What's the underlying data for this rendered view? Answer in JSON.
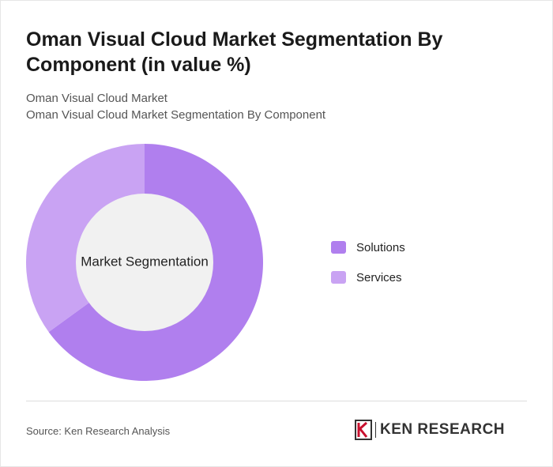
{
  "header": {
    "title": "Oman Visual Cloud Market Segmentation By Component (in value %)",
    "subtitle_line1": "Oman Visual Cloud Market",
    "subtitle_line2": "Oman Visual Cloud Market Segmentation By Component"
  },
  "chart_data": {
    "type": "pie",
    "variant": "donut",
    "center_label": "Market Segmentation",
    "categories": [
      "Solutions",
      "Services"
    ],
    "values": [
      65,
      35
    ],
    "colors": [
      "#b07fee",
      "#c9a3f3"
    ],
    "center_fill": "#f1f1f1",
    "legend_position": "right"
  },
  "footer": {
    "source": "Source: Ken Research Analysis",
    "logo_text": "KEN RESEARCH",
    "logo_icon": "ken-research-k-icon"
  }
}
